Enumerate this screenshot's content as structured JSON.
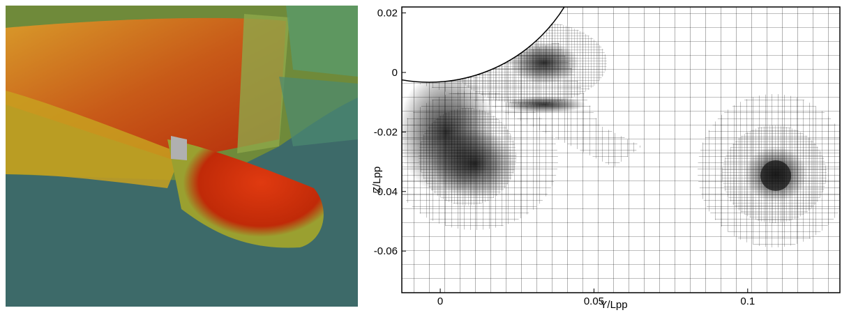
{
  "chart_data": {
    "type": "mesh",
    "xlabel": "Y/Lpp",
    "ylabel": "Z/Lpp",
    "xlim": [
      -0.0125,
      0.13
    ],
    "ylim": [
      -0.074,
      0.022
    ],
    "xticks": [
      0,
      0.05,
      0.1
    ],
    "yticks": [
      0.02,
      0,
      -0.02,
      -0.04,
      -0.06
    ]
  }
}
